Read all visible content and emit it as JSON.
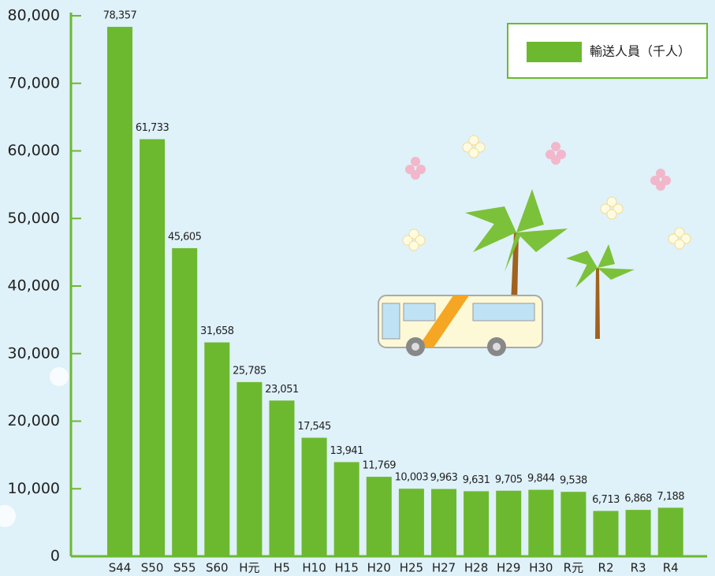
{
  "chart_data": {
    "type": "bar",
    "categories": [
      "S44",
      "S50",
      "S55",
      "S60",
      "H元",
      "H5",
      "H10",
      "H15",
      "H20",
      "H25",
      "H27",
      "H28",
      "H29",
      "H30",
      "R元",
      "R2",
      "R3",
      "R4"
    ],
    "series": [
      {
        "name": "輸送人員（千人）",
        "color": "#6cb92f",
        "values": [
          78357,
          61733,
          45605,
          31658,
          25785,
          23051,
          17545,
          13941,
          11769,
          10003,
          9963,
          9631,
          9705,
          9844,
          9538,
          6713,
          6868,
          7188
        ],
        "value_labels": [
          "78,357",
          "61,733",
          "45,605",
          "31,658",
          "25,785",
          "23,051",
          "17,545",
          "13,941",
          "11,769",
          "10,003",
          "9,963",
          "9,631",
          "9,705",
          "9,844",
          "9,538",
          "6,713",
          "6,868",
          "7,188"
        ]
      }
    ],
    "ylim": [
      0,
      80000
    ],
    "yticks": [
      0,
      {
        "value": 10000,
        "label": "10,000"
      },
      {
        "value": 20000,
        "label": "20,000"
      },
      {
        "value": 30000,
        "label": "30,000"
      },
      {
        "value": 40000,
        "label": "40,000"
      },
      {
        "value": 50000,
        "label": "50,000"
      },
      {
        "value": 60000,
        "label": "60,000"
      },
      {
        "value": 70000,
        "label": "70,000"
      },
      {
        "value": 80000,
        "label": "80,000"
      }
    ],
    "legend": "top-right"
  }
}
